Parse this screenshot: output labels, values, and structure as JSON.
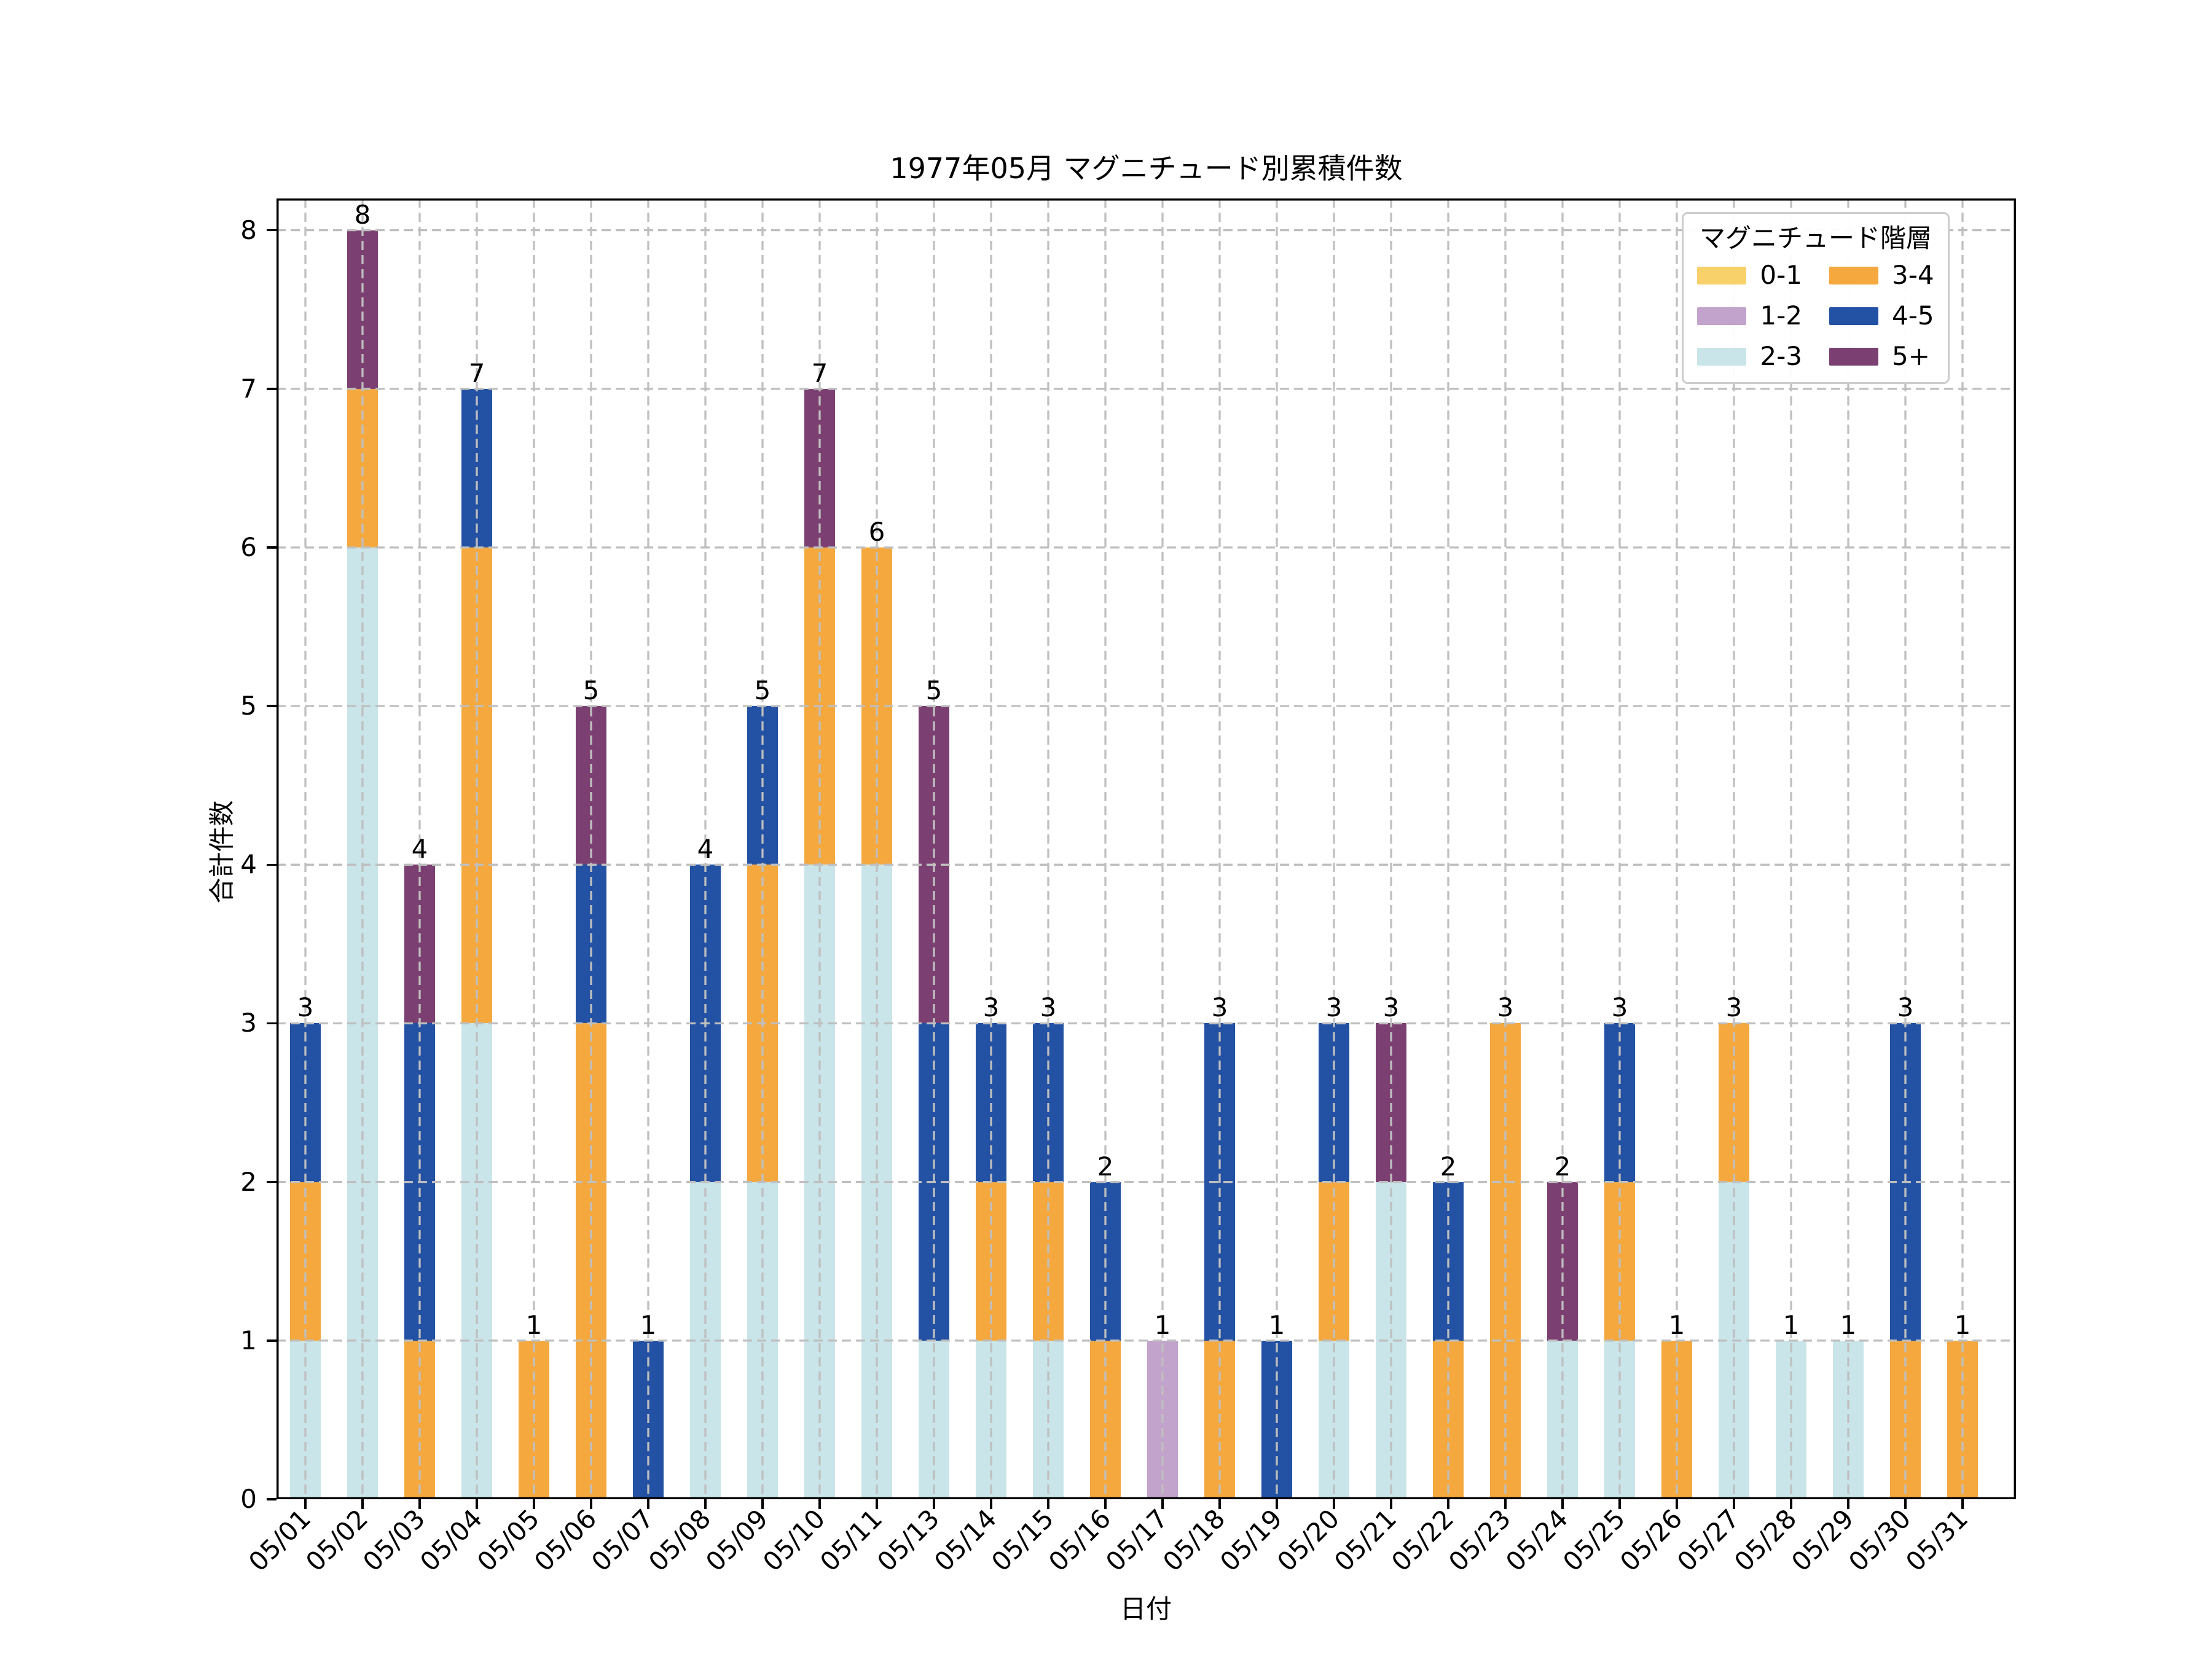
{
  "chart_data": {
    "type": "bar",
    "stacked": true,
    "title": "1977年05月 マグニチュード別累積件数",
    "xlabel": "日付",
    "ylabel": "合計件数",
    "categories": [
      "05/01",
      "05/02",
      "05/03",
      "05/04",
      "05/05",
      "05/06",
      "05/07",
      "05/08",
      "05/09",
      "05/10",
      "05/11",
      "05/13",
      "05/14",
      "05/15",
      "05/16",
      "05/17",
      "05/18",
      "05/19",
      "05/20",
      "05/21",
      "05/22",
      "05/23",
      "05/24",
      "05/25",
      "05/26",
      "05/27",
      "05/28",
      "05/29",
      "05/30",
      "05/31"
    ],
    "series": [
      {
        "name": "0-1",
        "color": "#F9D16A",
        "values": [
          0,
          0,
          0,
          0,
          0,
          0,
          0,
          0,
          0,
          0,
          0,
          0,
          0,
          0,
          0,
          0,
          0,
          0,
          0,
          0,
          0,
          0,
          0,
          0,
          0,
          0,
          0,
          0,
          0,
          0
        ]
      },
      {
        "name": "1-2",
        "color": "#C2A3CB",
        "values": [
          0,
          0,
          0,
          0,
          0,
          0,
          0,
          0,
          0,
          0,
          0,
          0,
          0,
          0,
          0,
          1,
          0,
          0,
          0,
          0,
          0,
          0,
          0,
          0,
          0,
          0,
          0,
          0,
          0,
          0
        ]
      },
      {
        "name": "2-3",
        "color": "#C9E5E9",
        "values": [
          1,
          6,
          0,
          3,
          0,
          0,
          0,
          2,
          2,
          4,
          4,
          1,
          1,
          1,
          0,
          0,
          0,
          0,
          1,
          2,
          0,
          0,
          1,
          1,
          0,
          2,
          1,
          1,
          0,
          0
        ]
      },
      {
        "name": "3-4",
        "color": "#F4A83E",
        "values": [
          1,
          1,
          1,
          3,
          1,
          3,
          0,
          0,
          2,
          2,
          2,
          0,
          1,
          1,
          1,
          0,
          1,
          0,
          1,
          0,
          1,
          3,
          0,
          1,
          1,
          1,
          0,
          0,
          1,
          1
        ]
      },
      {
        "name": "4-5",
        "color": "#2351A3",
        "values": [
          1,
          0,
          2,
          1,
          0,
          1,
          1,
          2,
          1,
          0,
          0,
          2,
          1,
          1,
          1,
          0,
          2,
          1,
          1,
          0,
          1,
          0,
          0,
          1,
          0,
          0,
          0,
          0,
          2,
          0
        ]
      },
      {
        "name": "5+",
        "color": "#7B4071",
        "values": [
          0,
          1,
          1,
          0,
          0,
          1,
          0,
          0,
          0,
          1,
          0,
          2,
          0,
          0,
          0,
          0,
          0,
          0,
          0,
          1,
          0,
          0,
          1,
          0,
          0,
          0,
          0,
          0,
          0,
          0
        ]
      }
    ],
    "totals": [
      3,
      8,
      4,
      7,
      1,
      5,
      1,
      4,
      5,
      7,
      6,
      5,
      3,
      3,
      2,
      1,
      3,
      1,
      3,
      3,
      2,
      3,
      2,
      3,
      1,
      3,
      1,
      1,
      3,
      1
    ],
    "bar_total_labels_shown": true,
    "yticks": [
      0,
      1,
      2,
      3,
      4,
      5,
      6,
      7,
      8
    ],
    "ylim": [
      0,
      8.2
    ],
    "grid": {
      "on": true,
      "style": "dashed",
      "color": "#bfbfbf",
      "over_bars": true
    },
    "legend": {
      "title": "マグニチュード階層",
      "position": "upper right",
      "ncols": 2,
      "labels": [
        "0-1",
        "1-2",
        "2-3",
        "3-4",
        "4-5",
        "5+"
      ]
    },
    "axis_color": "#000000",
    "background": "#ffffff"
  }
}
